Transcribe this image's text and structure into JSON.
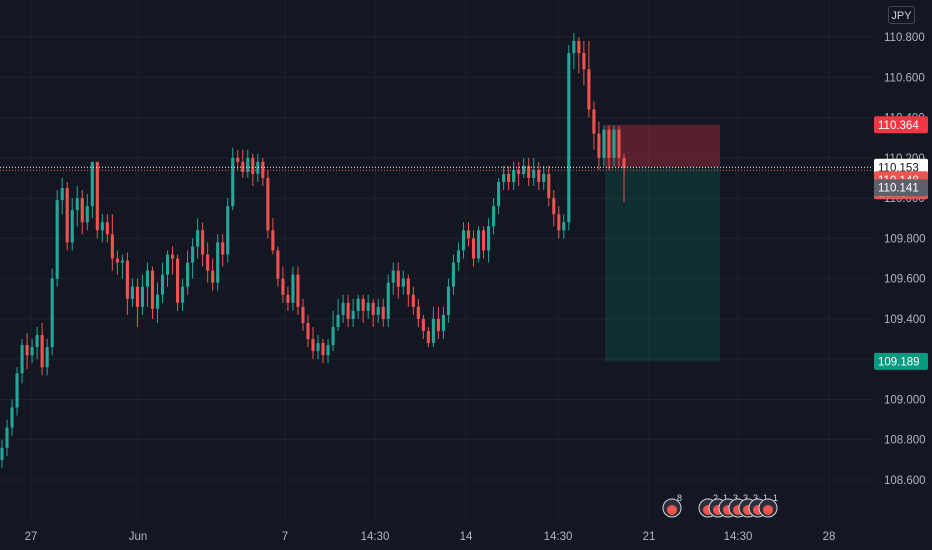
{
  "currency": "JPY",
  "colors": {
    "background": "#131722",
    "grid": "#1e222d",
    "up": "#26a69a",
    "down": "#ef5350",
    "stop_zone": "rgba(242,54,69,0.30)",
    "target_zone": "rgba(8,153,129,0.18)",
    "price_line": "#ef5350"
  },
  "chart_data": {
    "type": "candlestick",
    "ylim": [
      108.4,
      110.9
    ],
    "y_ticks": [
      "110.800",
      "110.600",
      "110.400",
      "110.200",
      "110.000",
      "109.800",
      "109.600",
      "109.400",
      "109.200",
      "109.000",
      "108.800",
      "108.600"
    ],
    "x_ticks": [
      "27",
      "Jun",
      "7",
      "14:30",
      "14",
      "14:30",
      "21",
      "14:30",
      "28"
    ],
    "grid": true,
    "candles": [
      [
        108.7,
        108.76,
        108.66,
        108.8
      ],
      [
        108.76,
        108.86,
        108.72,
        108.9
      ],
      [
        108.86,
        108.96,
        108.82,
        109.0
      ],
      [
        108.96,
        109.13,
        108.92,
        109.16
      ],
      [
        109.13,
        109.27,
        109.08,
        109.3
      ],
      [
        109.27,
        109.22,
        109.15,
        109.33
      ],
      [
        109.22,
        109.26,
        109.18,
        109.3
      ],
      [
        109.26,
        109.32,
        109.2,
        109.36
      ],
      [
        109.32,
        109.16,
        109.12,
        109.38
      ],
      [
        109.16,
        109.26,
        109.12,
        109.3
      ],
      [
        109.26,
        109.6,
        109.22,
        109.65
      ],
      [
        109.6,
        109.99,
        109.56,
        110.04
      ],
      [
        109.99,
        110.05,
        109.92,
        110.1
      ],
      [
        110.05,
        109.78,
        109.74,
        110.08
      ],
      [
        109.78,
        109.94,
        109.74,
        110.0
      ],
      [
        109.94,
        110.0,
        109.86,
        110.06
      ],
      [
        110.0,
        109.88,
        109.82,
        110.04
      ],
      [
        109.88,
        109.96,
        109.84,
        110.02
      ],
      [
        109.96,
        110.18,
        109.9,
        110.18
      ],
      [
        110.18,
        109.84,
        109.8,
        110.18
      ],
      [
        109.84,
        109.88,
        109.78,
        109.92
      ],
      [
        109.88,
        109.82,
        109.78,
        109.92
      ],
      [
        109.82,
        109.7,
        109.64,
        109.92
      ],
      [
        109.7,
        109.68,
        109.62,
        109.74
      ],
      [
        109.68,
        109.69,
        109.6,
        109.72
      ],
      [
        109.69,
        109.5,
        109.42,
        109.73
      ],
      [
        109.5,
        109.56,
        109.46,
        109.6
      ],
      [
        109.56,
        109.46,
        109.36,
        109.6
      ],
      [
        109.46,
        109.56,
        109.42,
        109.62
      ],
      [
        109.56,
        109.64,
        109.46,
        109.68
      ],
      [
        109.64,
        109.45,
        109.4,
        109.66
      ],
      [
        109.45,
        109.52,
        109.38,
        109.58
      ],
      [
        109.52,
        109.62,
        109.48,
        109.68
      ],
      [
        109.62,
        109.72,
        109.56,
        109.74
      ],
      [
        109.72,
        109.7,
        109.62,
        109.76
      ],
      [
        109.7,
        109.48,
        109.44,
        109.72
      ],
      [
        109.48,
        109.56,
        109.44,
        109.6
      ],
      [
        109.56,
        109.68,
        109.52,
        109.74
      ],
      [
        109.68,
        109.76,
        109.6,
        109.8
      ],
      [
        109.76,
        109.84,
        109.7,
        109.9
      ],
      [
        109.84,
        109.72,
        109.66,
        109.88
      ],
      [
        109.72,
        109.64,
        109.58,
        109.78
      ],
      [
        109.64,
        109.58,
        109.54,
        109.7
      ],
      [
        109.58,
        109.78,
        109.54,
        109.82
      ],
      [
        109.78,
        109.72,
        109.66,
        109.82
      ],
      [
        109.72,
        109.96,
        109.68,
        110.0
      ],
      [
        109.96,
        110.2,
        109.94,
        110.25
      ],
      [
        110.2,
        110.18,
        110.14,
        110.24
      ],
      [
        110.18,
        110.13,
        110.1,
        110.24
      ],
      [
        110.13,
        110.2,
        110.1,
        110.24
      ],
      [
        110.2,
        110.12,
        110.06,
        110.22
      ],
      [
        110.12,
        110.18,
        110.08,
        110.22
      ],
      [
        110.18,
        110.1,
        110.06,
        110.2
      ],
      [
        110.1,
        109.84,
        109.8,
        110.14
      ],
      [
        109.84,
        109.74,
        109.72,
        109.9
      ],
      [
        109.74,
        109.6,
        109.56,
        109.76
      ],
      [
        109.6,
        109.52,
        109.48,
        109.66
      ],
      [
        109.52,
        109.48,
        109.44,
        109.56
      ],
      [
        109.48,
        109.62,
        109.44,
        109.66
      ],
      [
        109.62,
        109.46,
        109.42,
        109.66
      ],
      [
        109.46,
        109.38,
        109.34,
        109.5
      ],
      [
        109.38,
        109.3,
        109.26,
        109.42
      ],
      [
        109.3,
        109.24,
        109.2,
        109.36
      ],
      [
        109.24,
        109.28,
        109.2,
        109.32
      ],
      [
        109.28,
        109.22,
        109.18,
        109.3
      ],
      [
        109.22,
        109.27,
        109.18,
        109.3
      ],
      [
        109.27,
        109.36,
        109.24,
        109.44
      ],
      [
        109.36,
        109.42,
        109.34,
        109.5
      ],
      [
        109.42,
        109.48,
        109.38,
        109.52
      ],
      [
        109.48,
        109.4,
        109.36,
        109.52
      ],
      [
        109.4,
        109.44,
        109.36,
        109.5
      ],
      [
        109.44,
        109.5,
        109.4,
        109.52
      ],
      [
        109.5,
        109.44,
        109.38,
        109.52
      ],
      [
        109.44,
        109.48,
        109.4,
        109.52
      ],
      [
        109.48,
        109.42,
        109.36,
        109.5
      ],
      [
        109.42,
        109.46,
        109.38,
        109.5
      ],
      [
        109.46,
        109.4,
        109.36,
        109.5
      ],
      [
        109.4,
        109.58,
        109.36,
        109.62
      ],
      [
        109.58,
        109.64,
        109.52,
        109.68
      ],
      [
        109.64,
        109.56,
        109.5,
        109.68
      ],
      [
        109.56,
        109.6,
        109.52,
        109.64
      ],
      [
        109.6,
        109.52,
        109.46,
        109.62
      ],
      [
        109.52,
        109.46,
        109.42,
        109.56
      ],
      [
        109.46,
        109.4,
        109.36,
        109.5
      ],
      [
        109.4,
        109.34,
        109.3,
        109.42
      ],
      [
        109.34,
        109.28,
        109.26,
        109.36
      ],
      [
        109.28,
        109.4,
        109.26,
        109.46
      ],
      [
        109.4,
        109.34,
        109.3,
        109.46
      ],
      [
        109.34,
        109.42,
        109.3,
        109.46
      ],
      [
        109.42,
        109.56,
        109.38,
        109.6
      ],
      [
        109.56,
        109.68,
        109.52,
        109.72
      ],
      [
        109.68,
        109.74,
        109.64,
        109.78
      ],
      [
        109.74,
        109.84,
        109.7,
        109.88
      ],
      [
        109.84,
        109.8,
        109.76,
        109.88
      ],
      [
        109.8,
        109.7,
        109.66,
        109.84
      ],
      [
        109.7,
        109.84,
        109.68,
        109.86
      ],
      [
        109.84,
        109.74,
        109.7,
        109.86
      ],
      [
        109.74,
        109.86,
        109.68,
        109.9
      ],
      [
        109.86,
        109.96,
        109.82,
        110.0
      ],
      [
        109.96,
        110.08,
        109.92,
        110.1
      ],
      [
        110.08,
        110.12,
        110.04,
        110.16
      ],
      [
        110.12,
        110.08,
        110.04,
        110.16
      ],
      [
        110.08,
        110.14,
        110.04,
        110.18
      ],
      [
        110.14,
        110.12,
        110.06,
        110.18
      ],
      [
        110.12,
        110.16,
        110.1,
        110.2
      ],
      [
        110.16,
        110.1,
        110.06,
        110.2
      ],
      [
        110.1,
        110.14,
        110.06,
        110.2
      ],
      [
        110.14,
        110.08,
        110.04,
        110.18
      ],
      [
        110.08,
        110.12,
        110.04,
        110.16
      ],
      [
        110.12,
        110.0,
        109.96,
        110.16
      ],
      [
        110.0,
        109.92,
        109.86,
        110.04
      ],
      [
        109.92,
        109.84,
        109.8,
        109.96
      ],
      [
        109.84,
        109.88,
        109.8,
        109.92
      ],
      [
        109.88,
        110.72,
        109.84,
        110.76
      ],
      [
        110.72,
        110.78,
        110.64,
        110.82
      ],
      [
        110.78,
        110.72,
        110.62,
        110.8
      ],
      [
        110.72,
        110.64,
        110.56,
        110.78
      ],
      [
        110.64,
        110.44,
        110.4,
        110.78
      ],
      [
        110.44,
        110.32,
        110.24,
        110.48
      ],
      [
        110.32,
        110.2,
        110.14,
        110.38
      ],
      [
        110.2,
        110.34,
        110.16,
        110.36
      ],
      [
        110.34,
        110.2,
        110.14,
        110.36
      ],
      [
        110.2,
        110.34,
        110.16,
        110.36
      ],
      [
        110.34,
        110.2,
        110.16,
        110.36
      ],
      [
        110.2,
        110.148,
        109.98,
        110.22
      ]
    ],
    "position": {
      "stop": 110.364,
      "entry": 110.153,
      "target": 109.189
    },
    "price_labels": [
      {
        "text": "110.364",
        "bg": "#f23645",
        "fg": "#ffffff"
      },
      {
        "text": "110.153",
        "bg": "#ffffff",
        "fg": "#131722"
      },
      {
        "text": "110.148",
        "sub": "16:55",
        "bg": "#ef5350",
        "fg": "#ffffff"
      },
      {
        "text": "110.141",
        "bg": "#5d606b",
        "fg": "#ffffff"
      },
      {
        "text": "109.189",
        "bg": "#089981",
        "fg": "#ffffff"
      }
    ],
    "events": [
      {
        "label": "8"
      },
      {
        "label": "2"
      },
      {
        "label": "1"
      },
      {
        "label": "3"
      },
      {
        "label": "3"
      },
      {
        "label": "3"
      },
      {
        "label": "1"
      },
      {
        "label": "1"
      }
    ]
  }
}
